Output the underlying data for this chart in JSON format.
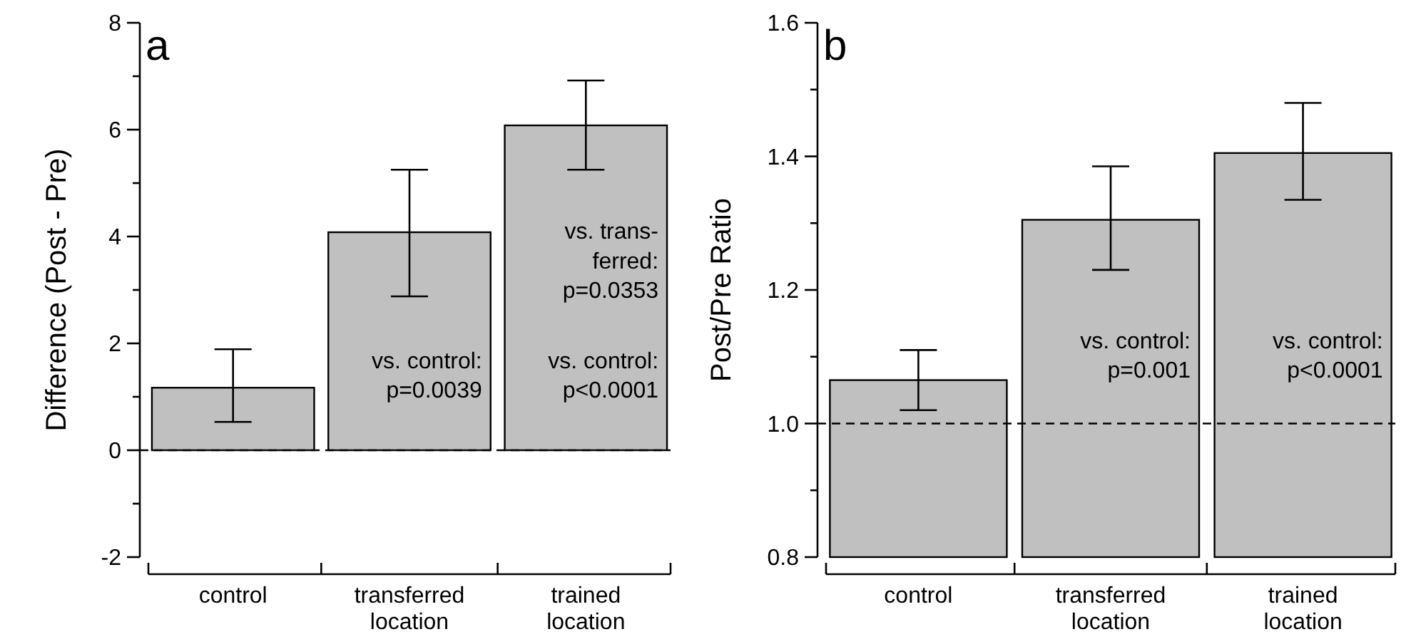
{
  "chart_data": [
    {
      "type": "bar",
      "title": "a",
      "ylabel": "Difference (Post - Pre)",
      "categories": [
        "control",
        "transferred location",
        "trained location"
      ],
      "values": [
        1.17,
        4.08,
        6.08
      ],
      "errors": [
        [
          0.53,
          1.89
        ],
        [
          2.88,
          5.25
        ],
        [
          5.25,
          6.92
        ]
      ],
      "color": "#c0c0c0",
      "ylim": [
        -2,
        8
      ],
      "yticks": [
        -2,
        {
          "value": -1,
          "label": null
        },
        0,
        {
          "value": 1,
          "label": null
        },
        2,
        {
          "value": 3,
          "label": null
        },
        4,
        {
          "value": 5,
          "label": null
        },
        6,
        {
          "value": 7,
          "label": null
        },
        8
      ],
      "grid": false,
      "ref_lines": [
        {
          "axis": "y",
          "value": 0,
          "line_style": "dashed"
        }
      ],
      "annotations": [
        "vs. control:\np=0.0039",
        "vs. trans-\nferred:\np=0.0353",
        "vs. control:\np<0.0001"
      ]
    },
    {
      "type": "bar",
      "title": "b",
      "ylabel": "Post/Pre Ratio",
      "categories": [
        "control",
        "transferred location",
        "trained location"
      ],
      "values": [
        1.065,
        1.305,
        1.405
      ],
      "errors": [
        [
          1.02,
          1.11
        ],
        [
          1.23,
          1.385
        ],
        [
          1.335,
          1.48
        ]
      ],
      "color": "#c0c0c0",
      "ylim": [
        0.8,
        1.6
      ],
      "yticks": [
        {
          "value": 0.8,
          "label": "0.8"
        },
        {
          "value": 0.9,
          "label": null
        },
        {
          "value": 1.0,
          "label": "1.0"
        },
        {
          "value": 1.1,
          "label": null
        },
        {
          "value": 1.2,
          "label": "1.2"
        },
        {
          "value": 1.3,
          "label": null
        },
        {
          "value": 1.4,
          "label": "1.4"
        },
        {
          "value": 1.5,
          "label": null
        },
        {
          "value": 1.6,
          "label": "1.6"
        }
      ],
      "grid": false,
      "ref_lines": [
        {
          "axis": "y",
          "value": 1.0,
          "line_style": "dashed"
        }
      ],
      "annotations": [
        "vs. control:\np=0.001",
        "vs. control:\np<0.0001"
      ]
    }
  ]
}
